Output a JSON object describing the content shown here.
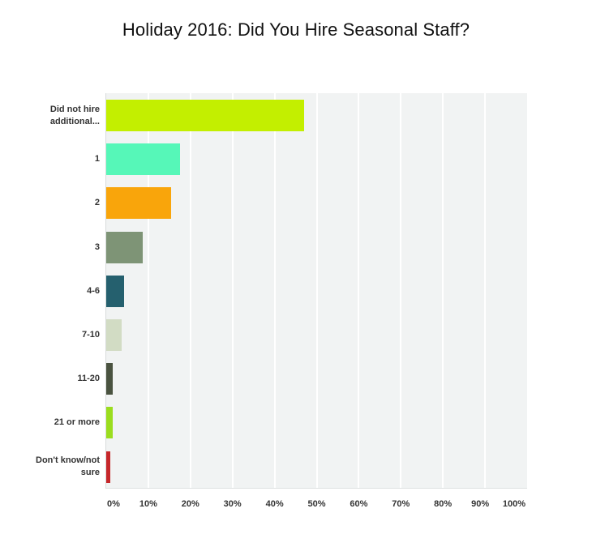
{
  "chart_data": {
    "type": "bar",
    "orientation": "horizontal",
    "title": "Holiday 2016: Did You Hire Seasonal Staff?",
    "xlabel": "",
    "ylabel": "",
    "xlim": [
      0,
      100
    ],
    "grid": true,
    "legend": null,
    "categories": [
      "Did not hire additional...",
      "1",
      "2",
      "3",
      "4-6",
      "7-10",
      "11-20",
      "21 or more",
      "Don't know/not sure"
    ],
    "values": [
      47.0,
      17.5,
      15.4,
      8.7,
      4.2,
      3.7,
      1.5,
      1.5,
      0.9
    ],
    "colors": [
      "#c3ef00",
      "#56f7b8",
      "#f9a50b",
      "#7e9476",
      "#25606e",
      "#d2dcc4",
      "#4a5340",
      "#9bdd1e",
      "#c6272a"
    ],
    "x_ticks": [
      "0%",
      "10%",
      "20%",
      "30%",
      "40%",
      "50%",
      "60%",
      "70%",
      "80%",
      "90%",
      "100%"
    ]
  },
  "title": "Holiday 2016: Did You Hire Seasonal Staff?",
  "rows": [
    {
      "label_line1": "Did not hire",
      "label_line2": "additional...",
      "value": 47.0,
      "color": "#c3ef00"
    },
    {
      "label_line1": "1",
      "label_line2": "",
      "value": 17.5,
      "color": "#56f7b8"
    },
    {
      "label_line1": "2",
      "label_line2": "",
      "value": 15.4,
      "color": "#f9a50b"
    },
    {
      "label_line1": "3",
      "label_line2": "",
      "value": 8.7,
      "color": "#7e9476"
    },
    {
      "label_line1": "4-6",
      "label_line2": "",
      "value": 4.2,
      "color": "#25606e"
    },
    {
      "label_line1": "7-10",
      "label_line2": "",
      "value": 3.7,
      "color": "#d2dcc4"
    },
    {
      "label_line1": "11-20",
      "label_line2": "",
      "value": 1.5,
      "color": "#4a5340"
    },
    {
      "label_line1": "21 or more",
      "label_line2": "",
      "value": 1.5,
      "color": "#9bdd1e"
    },
    {
      "label_line1": "Don't know/not",
      "label_line2": "sure",
      "value": 0.9,
      "color": "#c6272a"
    }
  ],
  "ticks": [
    "0%",
    "10%",
    "20%",
    "30%",
    "40%",
    "50%",
    "60%",
    "70%",
    "80%",
    "90%",
    "100%"
  ]
}
